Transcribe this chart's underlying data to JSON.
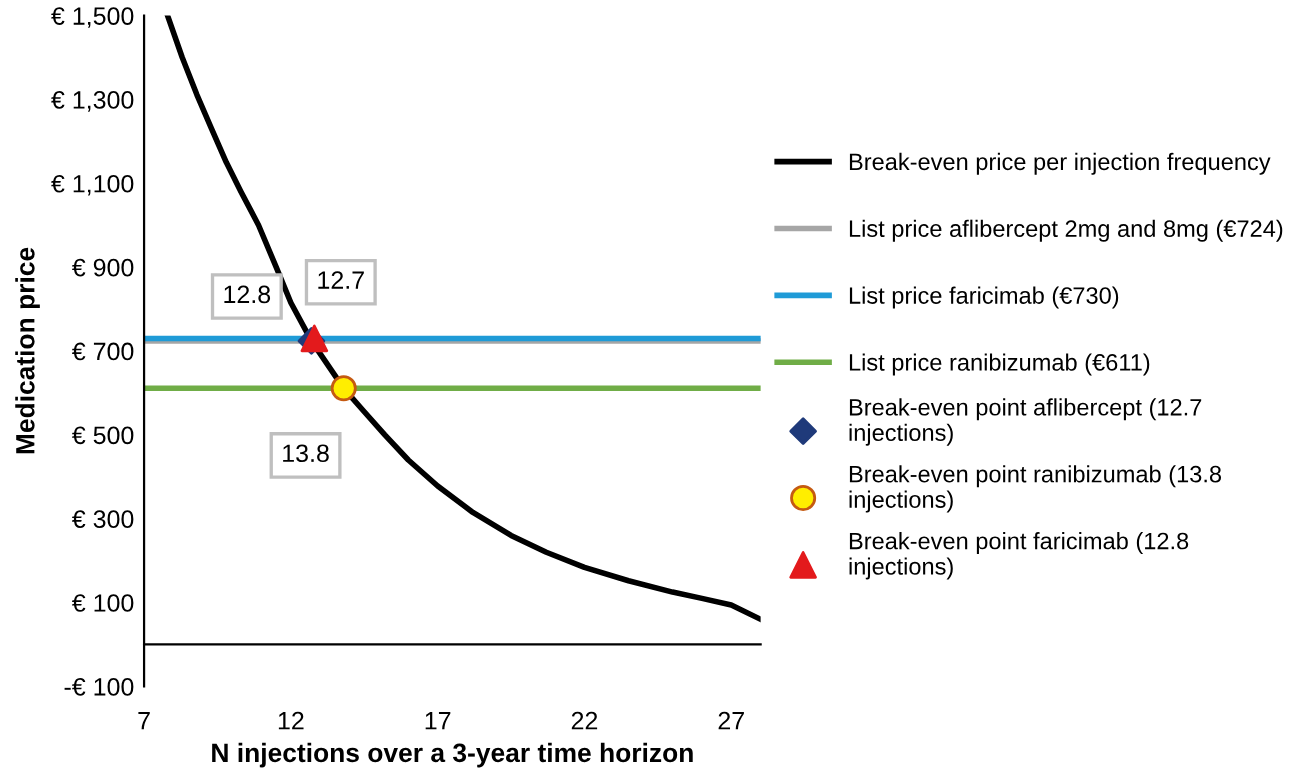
{
  "chart_data": {
    "type": "line",
    "xlabel": "N injections over a 3-year time horizon",
    "ylabel": "Medication price",
    "xlim": [
      7,
      28
    ],
    "xticks": [
      7,
      12,
      17,
      22,
      27
    ],
    "ylim": [
      -100,
      1500
    ],
    "yticks": [
      {
        "value": -100,
        "label": "-€ 100"
      },
      {
        "value": 100,
        "label": "€ 100"
      },
      {
        "value": 300,
        "label": "€ 300"
      },
      {
        "value": 500,
        "label": "€ 500"
      },
      {
        "value": 700,
        "label": "€ 700"
      },
      {
        "value": 900,
        "label": "€ 900"
      },
      {
        "value": 1100,
        "label": "€ 1,100"
      },
      {
        "value": 1300,
        "label": "€ 1,300"
      },
      {
        "value": 1500,
        "label": "€ 1,500"
      }
    ],
    "grid": false,
    "legend": "right",
    "series": [
      {
        "name": "Break-even price per injection frequency",
        "color": "#000000",
        "marker": "none",
        "x": [
          7.8,
          8.3,
          8.8,
          9.3,
          9.8,
          10.3,
          10.9,
          11.5,
          12,
          12.7,
          13.8,
          14.5,
          15.2,
          16,
          17,
          18.2,
          19.5,
          20.7,
          22,
          23.5,
          25,
          26,
          27,
          28
        ],
        "values": [
          1500,
          1400,
          1311,
          1230,
          1150,
          1080,
          1000,
          900,
          815,
          724,
          611,
          555,
          500,
          440,
          378,
          315,
          260,
          220,
          184,
          152,
          125,
          110,
          94,
          60
        ]
      },
      {
        "name": "Break-even point aflibercept (12.7 injections)",
        "type": "scatter",
        "color": "#1f3a7a",
        "marker": "diamond",
        "x": [
          12.7
        ],
        "values": [
          724
        ]
      },
      {
        "name": "Break-even point ranibizumab (13.8 injections)",
        "type": "scatter",
        "color": "#ffee00",
        "marker": "circle",
        "x": [
          13.8
        ],
        "values": [
          611
        ]
      },
      {
        "name": "Break-even point faricimab (12.8 injections)",
        "type": "scatter",
        "color": "#e31a1c",
        "marker": "triangle",
        "x": [
          12.8
        ],
        "values": [
          730
        ]
      }
    ],
    "ref_lines": [
      {
        "axis": "y",
        "value": 724,
        "label": "List price aflibercept 2mg and 8mg (€724)",
        "color": "#a6a6a6"
      },
      {
        "axis": "y",
        "value": 730,
        "label": "List price faricimab (€730)",
        "color": "#1f9bd7"
      },
      {
        "axis": "y",
        "value": 611,
        "label": "List price ranibizumab (€611)",
        "color": "#70ad47"
      }
    ],
    "annotations": [
      {
        "text": "12.8",
        "x": 12.8,
        "y": 730
      },
      {
        "text": "12.7",
        "x": 12.7,
        "y": 724
      },
      {
        "text": "13.8",
        "x": 13.8,
        "y": 611
      }
    ]
  }
}
